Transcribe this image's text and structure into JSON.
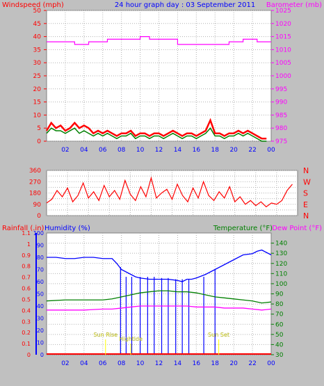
{
  "header": {
    "left_title": "Windspeed (mph)",
    "center_title": "24 hour graph day : 03 September 2011",
    "right_title": "Barometer (mb)"
  },
  "colors": {
    "background": "#c0c0c0",
    "plot_area": "#ffffff",
    "grid": "#b0b0b0",
    "wind": "#ff0000",
    "gust": "#008000",
    "barometer": "#ff00ff",
    "direction": "#ff0000",
    "humidity": "#0000ff",
    "temperature": "#008000",
    "dewpoint": "#ff00ff",
    "rain": "#ff0000",
    "sun": "#ffff00",
    "axis_blue": "#0000ff"
  },
  "x_ticks": [
    "02",
    "04",
    "06",
    "08",
    "10",
    "12",
    "14",
    "16",
    "18",
    "20",
    "22",
    "00"
  ],
  "chart_data": [
    {
      "type": "line",
      "ylabel": "Windspeed (mph)",
      "y2label": "Barometer (mb)",
      "xlim": [
        0,
        24
      ],
      "ylim": [
        0,
        50
      ],
      "y_ticks": [
        0,
        5,
        10,
        15,
        20,
        25,
        30,
        35,
        40,
        45,
        50
      ],
      "y2lim": [
        975,
        1025
      ],
      "y2_ticks": [
        975,
        980,
        985,
        990,
        995,
        1000,
        1005,
        1010,
        1015,
        1020,
        1025
      ],
      "series": [
        {
          "role": "barometer",
          "axis": "right",
          "x": [
            0,
            3.0,
            3.0,
            4.5,
            4.5,
            6.5,
            6.5,
            10.0,
            10.0,
            11.0,
            11.0,
            14.0,
            14.0,
            19.5,
            19.5,
            21.0,
            21.0,
            22.5,
            22.5,
            24
          ],
          "y": [
            1013,
            1013,
            1012,
            1012,
            1013,
            1013,
            1014,
            1014,
            1015,
            1015,
            1014,
            1014,
            1012,
            1012,
            1013,
            1013,
            1014,
            1014,
            1013,
            1013
          ]
        },
        {
          "role": "windspeed",
          "axis": "left",
          "x": [
            0,
            0.5,
            1,
            1.5,
            2,
            2.5,
            3,
            3.5,
            4,
            4.5,
            5,
            5.5,
            6,
            6.5,
            7,
            7.5,
            8,
            8.5,
            9,
            9.5,
            10,
            10.5,
            11,
            11.5,
            12,
            12.5,
            13,
            13.5,
            14,
            14.5,
            15,
            15.5,
            16,
            16.5,
            17,
            17.5,
            18,
            18.5,
            19,
            19.5,
            20,
            20.5,
            21,
            21.5,
            22,
            22.5,
            23,
            23.5
          ],
          "y": [
            4,
            7,
            5,
            6,
            4,
            5,
            7,
            5,
            6,
            5,
            3,
            4,
            3,
            4,
            3,
            2,
            3,
            3,
            4,
            2,
            3,
            3,
            2,
            3,
            3,
            2,
            3,
            4,
            3,
            2,
            3,
            3,
            2,
            3,
            4,
            8,
            3,
            3,
            2,
            3,
            3,
            4,
            3,
            4,
            3,
            2,
            1,
            1
          ]
        },
        {
          "role": "gust",
          "axis": "left",
          "x": [
            0,
            0.5,
            1,
            1.5,
            2,
            2.5,
            3,
            3.5,
            4,
            4.5,
            5,
            5.5,
            6,
            6.5,
            7,
            7.5,
            8,
            8.5,
            9,
            9.5,
            10,
            10.5,
            11,
            11.5,
            12,
            12.5,
            13,
            13.5,
            14,
            14.5,
            15,
            15.5,
            16,
            16.5,
            17,
            17.5,
            18,
            18.5,
            19,
            19.5,
            20,
            20.5,
            21,
            21.5,
            22,
            22.5,
            23,
            23.5
          ],
          "y": [
            3,
            5,
            4,
            4,
            3,
            4,
            5,
            3,
            4,
            3,
            2,
            3,
            2,
            3,
            2,
            1,
            2,
            2,
            3,
            1,
            2,
            2,
            1,
            2,
            2,
            1,
            2,
            3,
            2,
            1,
            2,
            2,
            1,
            2,
            3,
            5,
            2,
            2,
            1,
            2,
            2,
            3,
            2,
            3,
            2,
            1,
            0,
            0
          ]
        }
      ]
    },
    {
      "type": "line",
      "ylim": [
        0,
        360
      ],
      "y_ticks": [
        0,
        45,
        90,
        135,
        180,
        225,
        270,
        315,
        360
      ],
      "y_tick_labels": [
        "0",
        "",
        "90",
        "",
        "180",
        "",
        "270",
        "",
        "360"
      ],
      "y2_ticks": [
        360,
        270,
        180,
        90,
        0
      ],
      "y2_tick_labels": [
        "N",
        "W",
        "S",
        "E",
        "N"
      ],
      "series": [
        {
          "role": "wind_direction",
          "x": [
            0,
            0.5,
            1,
            1.5,
            2,
            2.5,
            3,
            3.5,
            4,
            4.5,
            5,
            5.5,
            6,
            6.5,
            7,
            7.5,
            8,
            8.5,
            9,
            9.5,
            10,
            10.5,
            11,
            11.5,
            12,
            12.5,
            13,
            13.5,
            14,
            14.5,
            15,
            15.5,
            16,
            16.5,
            17,
            17.5,
            18,
            18.5,
            19,
            19.5,
            20,
            20.5,
            21,
            21.5,
            22,
            22.5,
            23,
            23.5
          ],
          "y": [
            100,
            130,
            200,
            150,
            220,
            110,
            160,
            260,
            140,
            190,
            120,
            240,
            150,
            200,
            130,
            280,
            170,
            120,
            230,
            150,
            300,
            140,
            180,
            210,
            130,
            250,
            160,
            110,
            220,
            140,
            270,
            160,
            120,
            190,
            140,
            230,
            110,
            150,
            90,
            120,
            80,
            110,
            70,
            100,
            90,
            120,
            200,
            250
          ]
        }
      ]
    },
    {
      "type": "line",
      "xlim": [
        0,
        24
      ],
      "y_left_outer_label": "Rainfall (.in)",
      "y_left_inner_label": "Humidity (%)",
      "y_right_inner_label": "Temperature (°F)",
      "y_right_outer_label": "Dew Point (°F)",
      "rain_ylim": [
        0,
        1.1
      ],
      "rain_ticks": [
        0,
        0.1,
        0.2,
        0.3,
        0.4,
        0.5,
        0.6,
        0.7,
        0.8,
        0.9,
        1,
        1.1
      ],
      "rain_tick_labels": [
        "0",
        "0.1",
        "0.2",
        "0.3",
        "0.4",
        "0.5",
        "0.6",
        "0.7",
        "0.8",
        "0.9",
        "1",
        "1.1"
      ],
      "humidity_ylim": [
        0,
        100
      ],
      "humidity_ticks": [
        0,
        10,
        20,
        30,
        40,
        50,
        60,
        70,
        80,
        90,
        100
      ],
      "temp_ylim": [
        30,
        150
      ],
      "temp_ticks": [
        30,
        40,
        50,
        60,
        70,
        80,
        90,
        100,
        110,
        120,
        130,
        140
      ],
      "series": [
        {
          "role": "humidity",
          "axis": "humidity",
          "x": [
            0,
            1,
            2,
            3,
            4,
            5,
            6,
            7,
            7.5,
            8,
            8.5,
            9,
            9.5,
            10,
            11,
            12,
            13,
            14,
            14.5,
            15,
            15.5,
            16,
            17,
            18,
            19,
            20,
            21,
            22,
            22.5,
            23,
            23.5,
            24
          ],
          "y": [
            80,
            80,
            79,
            79,
            80,
            80,
            79,
            79,
            75,
            70,
            68,
            66,
            64,
            63,
            62,
            62,
            62,
            61,
            60,
            62,
            62,
            63,
            66,
            70,
            74,
            78,
            82,
            83,
            85,
            86,
            84,
            82
          ]
        },
        {
          "role": "temperature",
          "axis": "temp",
          "x": [
            0,
            2,
            4,
            6,
            7,
            8,
            9,
            10,
            11,
            12,
            13,
            14,
            15,
            16,
            17,
            18,
            19,
            20,
            21,
            22,
            23,
            24
          ],
          "y": [
            83,
            84,
            84,
            84,
            85,
            87,
            89,
            91,
            92,
            93,
            93,
            92,
            92,
            91,
            89,
            87,
            86,
            85,
            84,
            83,
            81,
            82
          ]
        },
        {
          "role": "dewpoint",
          "axis": "temp",
          "x": [
            0,
            2,
            4,
            6,
            7,
            8,
            9,
            10,
            11,
            12,
            13,
            14,
            15,
            16,
            17,
            18,
            19,
            20,
            21,
            22,
            23,
            24
          ],
          "y": [
            74,
            74,
            74,
            75,
            75,
            76,
            77,
            78,
            78,
            78,
            78,
            78,
            78,
            77,
            77,
            77,
            76,
            76,
            76,
            75,
            74,
            75
          ]
        },
        {
          "role": "rain_markers",
          "axis": "humidity",
          "x": [
            7.9,
            8.5,
            9.1,
            10.0,
            10.8,
            11.5,
            12.3,
            13.0,
            13.8,
            14.5,
            15.2,
            16.8,
            18.0
          ],
          "y": [
            72,
            64,
            64,
            64,
            64,
            64,
            63,
            63,
            62,
            62,
            62,
            64,
            70
          ]
        }
      ],
      "annotations": [
        {
          "text": "Sun Rise",
          "x": 6.3
        },
        {
          "text": "Hightide",
          "x": 9.0
        },
        {
          "text": "Sun Set",
          "x": 18.4
        }
      ]
    }
  ]
}
